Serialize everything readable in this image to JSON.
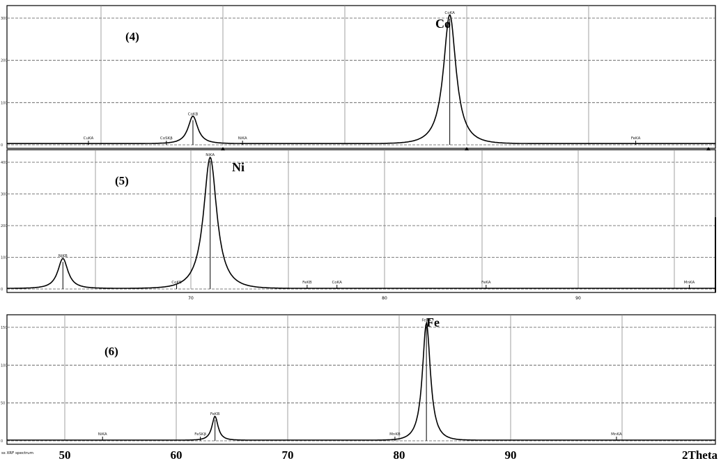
{
  "chart_data": [
    {
      "type": "line",
      "panel_label": "(4)",
      "element_label": "Co",
      "y_ticks": [
        "300",
        "200",
        "100",
        "0"
      ],
      "peaks": [
        {
          "label": "CuKA",
          "pos": 48.6,
          "height": 0
        },
        {
          "label": "CoSKβ",
          "pos": 53.0,
          "height": 0
        },
        {
          "label": "CoKB",
          "pos": 54.5,
          "height": 63
        },
        {
          "label": "NiKA",
          "pos": 57.3,
          "height": 0
        },
        {
          "label": "CoKA",
          "pos": 69.0,
          "height": 296
        },
        {
          "label": "FeKA",
          "pos": 79.5,
          "height": 0
        }
      ],
      "background": 3,
      "xlim": [
        44.0,
        84.0
      ],
      "ylim": [
        0,
        320
      ],
      "grid": true
    },
    {
      "type": "line",
      "panel_label": "(5)",
      "element_label": "Ni",
      "y_ticks": [
        "400",
        "300",
        "200",
        "100",
        "0"
      ],
      "x_ticks": [
        "70",
        "80",
        "90"
      ],
      "peaks": [
        {
          "label": "NiKB",
          "pos": 63.2,
          "height": 90
        },
        {
          "label": "CoKB",
          "pos": 69.3,
          "height": 0
        },
        {
          "label": "NiKA",
          "pos": 71.1,
          "height": 395
        },
        {
          "label": "FeKB",
          "pos": 76.3,
          "height": 0
        },
        {
          "label": "CoKA",
          "pos": 77.9,
          "height": 0
        },
        {
          "label": "FeKA",
          "pos": 85.9,
          "height": 0
        },
        {
          "label": "MnKA",
          "pos": 96.8,
          "height": 0
        }
      ],
      "background": 2,
      "xlim": [
        60.2,
        98.2
      ],
      "ylim": [
        0,
        420
      ],
      "grid": true
    },
    {
      "type": "line",
      "panel_label": "(6)",
      "element_label": "Fe",
      "y_ticks": [
        "150",
        "100",
        "50",
        "0"
      ],
      "x_ticks": [
        "50",
        "60",
        "70",
        "80",
        "90"
      ],
      "xlabel": "2Theta",
      "peaks": [
        {
          "label": "NiKA",
          "pos": 52.5,
          "height": 0
        },
        {
          "label": "FeSKβ",
          "pos": 61.2,
          "height": 0
        },
        {
          "label": "FeKB",
          "pos": 62.5,
          "height": 35
        },
        {
          "label": "MnKB",
          "pos": 78.5,
          "height": 0
        },
        {
          "label": "FeKA",
          "pos": 81.3,
          "height": 172
        },
        {
          "label": "MnKA",
          "pos": 98.2,
          "height": 0
        }
      ],
      "background": 1,
      "xlim": [
        44.0,
        107.0
      ],
      "ylim": [
        0,
        185
      ],
      "grid": true
    }
  ],
  "footer": {
    "file_label": "ss XRF spectrum"
  }
}
